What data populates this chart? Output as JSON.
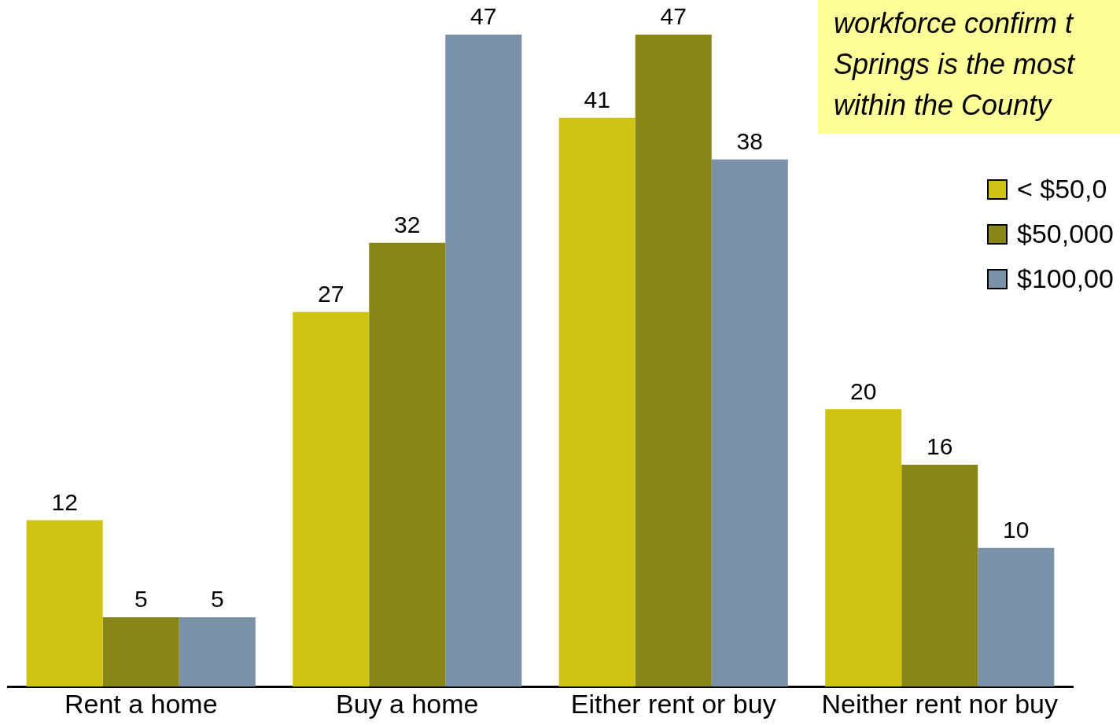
{
  "chart_data": {
    "type": "bar",
    "categories": [
      "Rent a home",
      "Buy a home",
      "Either rent or buy",
      "Neither rent nor buy"
    ],
    "series": [
      {
        "name": "< $50,0",
        "color": "#cfc314",
        "values": [
          12,
          27,
          41,
          20
        ]
      },
      {
        "name": "$50,000",
        "color": "#888616",
        "values": [
          5,
          32,
          47,
          16
        ]
      },
      {
        "name": "$100,00",
        "color": "#7a91a8",
        "values": [
          5,
          47,
          38,
          10
        ]
      }
    ],
    "data_labels": true,
    "grid": false,
    "legend": "right",
    "annotations": [
      "workforce confirm t\nSprings is the most\nwithin the County"
    ]
  }
}
